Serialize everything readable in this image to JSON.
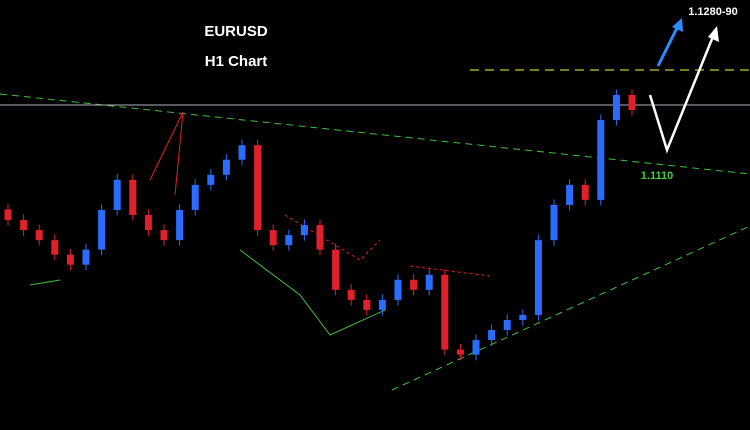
{
  "chart_data": {
    "type": "candlestick",
    "title": "EURUSD",
    "subtitle": "H1 Chart",
    "annotations": [
      "1.1280-90",
      "1.1110"
    ],
    "ylim": [
      1.0635,
      1.1405
    ],
    "up_color": "#2a6cff",
    "down_color": "#e0202a",
    "open": [
      1.103,
      1.1011,
      1.0993,
      1.0975,
      1.0949,
      1.0931,
      1.0958,
      1.1029,
      1.1083,
      1.102,
      1.0993,
      1.0975,
      1.1029,
      1.1074,
      1.1092,
      1.1119,
      1.1145,
      1.0993,
      1.0966,
      1.0984,
      1.1002,
      1.0958,
      1.0886,
      1.0868,
      1.085,
      1.0868,
      1.0904,
      1.0886,
      1.0913,
      1.0779,
      1.077,
      1.0796,
      1.0814,
      1.0832,
      1.0841,
      1.0975,
      1.1038,
      1.1074,
      1.1047,
      1.119,
      1.1235
    ],
    "high": [
      1.104,
      1.1021,
      1.1003,
      1.0985,
      1.0959,
      1.0968,
      1.1039,
      1.1093,
      1.1093,
      1.103,
      1.1003,
      1.1039,
      1.1084,
      1.1102,
      1.1129,
      1.1155,
      1.1155,
      1.1003,
      1.0994,
      1.1012,
      1.1012,
      1.0968,
      1.0896,
      1.0878,
      1.0878,
      1.0914,
      1.0914,
      1.0923,
      1.0923,
      1.0789,
      1.0806,
      1.0824,
      1.0842,
      1.0851,
      1.0985,
      1.1048,
      1.1084,
      1.1084,
      1.12,
      1.1245,
      1.1245
    ],
    "low": [
      1.1001,
      1.0983,
      1.0965,
      1.0939,
      1.0921,
      1.0921,
      1.0948,
      1.1019,
      1.101,
      1.0983,
      1.0965,
      1.0965,
      1.1019,
      1.1064,
      1.1082,
      1.1109,
      1.0983,
      1.0956,
      1.0956,
      1.0974,
      1.0948,
      1.0876,
      1.0858,
      1.084,
      1.084,
      1.0858,
      1.0876,
      1.0876,
      1.0769,
      1.076,
      1.076,
      1.0786,
      1.0804,
      1.0822,
      1.0831,
      1.0965,
      1.1028,
      1.1037,
      1.1037,
      1.118,
      1.1198
    ],
    "close": [
      1.1011,
      1.0993,
      1.0975,
      1.0949,
      1.0931,
      1.0958,
      1.1029,
      1.1083,
      1.102,
      1.0993,
      1.0975,
      1.1029,
      1.1074,
      1.1092,
      1.1119,
      1.1145,
      1.0993,
      1.0966,
      1.0984,
      1.1002,
      1.0958,
      1.0886,
      1.0868,
      1.085,
      1.0868,
      1.0904,
      1.0886,
      1.0913,
      1.0779,
      1.077,
      1.0796,
      1.0814,
      1.0832,
      1.0841,
      1.0975,
      1.1038,
      1.1074,
      1.1047,
      1.119,
      1.1235,
      1.1208
    ]
  }
}
